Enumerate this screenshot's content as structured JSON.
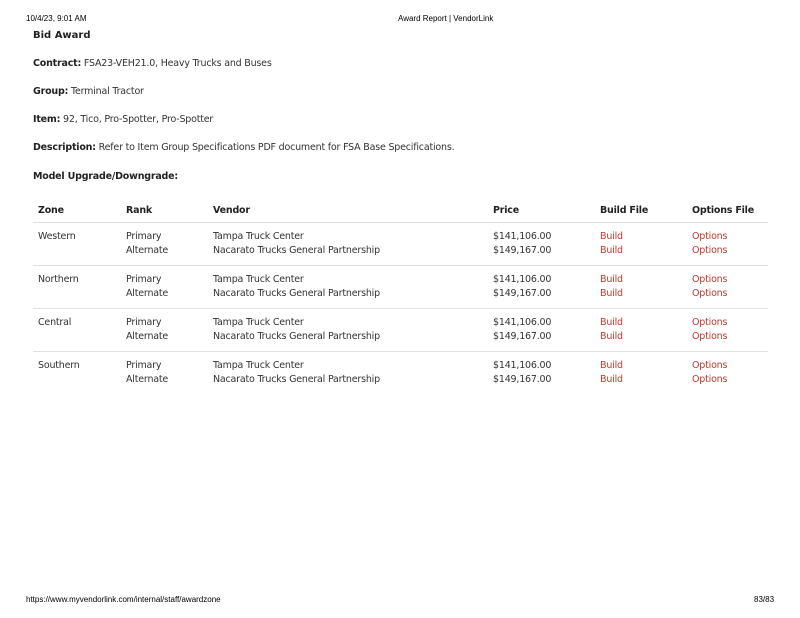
{
  "print_header": {
    "datetime": "10/4/23, 9:01 AM",
    "page_title": "Award Report | VendorLink"
  },
  "print_footer": {
    "url": "https://www.myvendorlink.com/internal/staff/awardzone",
    "page": "83/83"
  },
  "title": "Bid Award",
  "fields": [
    {
      "label": "Contract:",
      "value": "FSA23-VEH21.0, Heavy Trucks and Buses"
    },
    {
      "label": "Group:",
      "value": "Terminal Tractor"
    },
    {
      "label": "Item:",
      "value": "92, Tico, Pro-Spotter, Pro-Spotter"
    },
    {
      "label": "Description:",
      "value": "Refer to Item Group Specifications PDF document for FSA Base Specifications."
    },
    {
      "label": "Model Upgrade/Downgrade:",
      "value": ""
    }
  ],
  "colors": {
    "link": "#c0392b"
  },
  "table": {
    "headers": [
      "Zone",
      "Rank",
      "Vendor",
      "Price",
      "Build File",
      "Options File"
    ],
    "zones": [
      {
        "zone": "Western",
        "rows": [
          {
            "rank": "Primary",
            "vendor": "Tampa Truck Center",
            "price": "$141,106.00",
            "build": "Build",
            "options": "Options"
          },
          {
            "rank": "Alternate",
            "vendor": "Nacarato Trucks General Partnership",
            "price": "$149,167.00",
            "build": "Build",
            "options": "Options"
          }
        ]
      },
      {
        "zone": "Northern",
        "rows": [
          {
            "rank": "Primary",
            "vendor": "Tampa Truck Center",
            "price": "$141,106.00",
            "build": "Build",
            "options": "Options"
          },
          {
            "rank": "Alternate",
            "vendor": "Nacarato Trucks General Partnership",
            "price": "$149,167.00",
            "build": "Build",
            "options": "Options"
          }
        ]
      },
      {
        "zone": "Central",
        "rows": [
          {
            "rank": "Primary",
            "vendor": "Tampa Truck Center",
            "price": "$141,106.00",
            "build": "Build",
            "options": "Options"
          },
          {
            "rank": "Alternate",
            "vendor": "Nacarato Trucks General Partnership",
            "price": "$149,167.00",
            "build": "Build",
            "options": "Options"
          }
        ]
      },
      {
        "zone": "Southern",
        "rows": [
          {
            "rank": "Primary",
            "vendor": "Tampa Truck Center",
            "price": "$141,106.00",
            "build": "Build",
            "options": "Options"
          },
          {
            "rank": "Alternate",
            "vendor": "Nacarato Trucks General Partnership",
            "price": "$149,167.00",
            "build": "Build",
            "options": "Options"
          }
        ]
      }
    ]
  }
}
